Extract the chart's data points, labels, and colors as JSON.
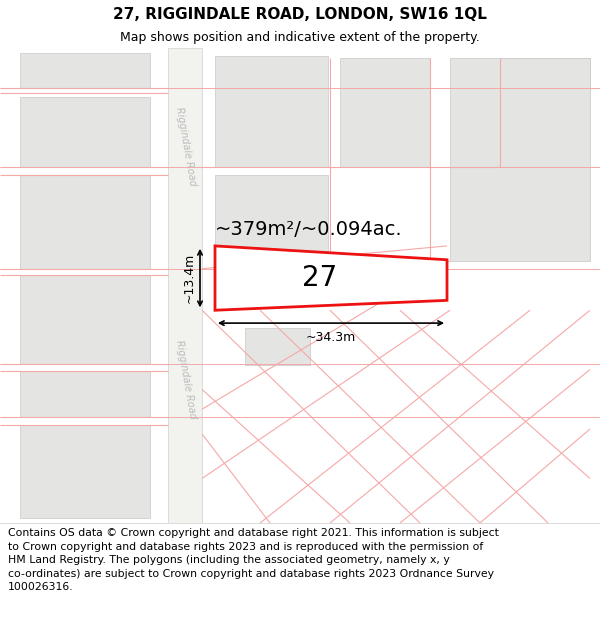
{
  "title": "27, RIGGINDALE ROAD, LONDON, SW16 1QL",
  "subtitle": "Map shows position and indicative extent of the property.",
  "footer": "Contains OS data © Crown copyright and database right 2021. This information is subject to Crown copyright and database rights 2023 and is reproduced with the permission of\nHM Land Registry. The polygons (including the associated geometry, namely x, y co-ordinates) are subject to Crown copyright and database rights 2023 Ordnance Survey\n100026316.",
  "bg_color": "#ffffff",
  "building_fill": "#e4e4e2",
  "building_edge": "#c8c8c6",
  "plot_line_color": "#f5a8a8",
  "highlight_color": "#ee1111",
  "road_fill": "#f2f2ef",
  "road_edge": "#d0d0cc",
  "label_27": "27",
  "area_label": "~379m²/~0.094ac.",
  "dim_width": "~34.3m",
  "dim_height": "~13.4m",
  "road_label": "Riggindale Road",
  "title_fontsize": 11,
  "subtitle_fontsize": 9,
  "footer_fontsize": 7.8,
  "road_label_color": "#bbbbbb",
  "area_fontsize": 14,
  "number_fontsize": 20,
  "dim_fontsize": 9
}
